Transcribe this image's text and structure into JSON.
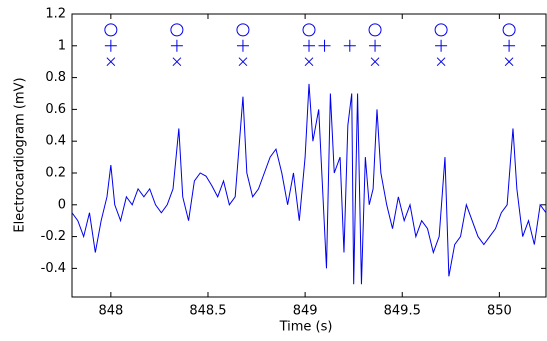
{
  "chart_data": {
    "type": "line",
    "xlabel": "Time (s)",
    "ylabel": "Electrocardiogram (mV)",
    "xlim": [
      847.8,
      850.24
    ],
    "ylim": [
      -0.58,
      1.2
    ],
    "xticks": [
      848,
      848.5,
      849,
      849.5,
      850
    ],
    "yticks": [
      -0.4,
      -0.2,
      0,
      0.2,
      0.4,
      0.6,
      0.8,
      1,
      1.2
    ],
    "series": [
      {
        "color": "#0000ee",
        "marker": "line",
        "x": [
          847.8,
          847.83,
          847.86,
          847.89,
          847.92,
          847.95,
          847.98,
          848.0,
          848.02,
          848.05,
          848.08,
          848.11,
          848.14,
          848.17,
          848.2,
          848.23,
          848.26,
          848.29,
          848.32,
          848.35,
          848.37,
          848.4,
          848.43,
          848.46,
          848.49,
          848.52,
          848.55,
          848.58,
          848.61,
          848.64,
          848.68,
          848.7,
          848.73,
          848.76,
          848.79,
          848.82,
          848.85,
          848.88,
          848.91,
          848.94,
          848.97,
          849.0,
          849.02,
          849.04,
          849.07,
          849.09,
          849.11,
          849.13,
          849.15,
          849.18,
          849.2,
          849.22,
          849.24,
          849.25,
          849.27,
          849.29,
          849.31,
          849.33,
          849.35,
          849.37,
          849.39,
          849.42,
          849.45,
          849.48,
          849.51,
          849.54,
          849.57,
          849.6,
          849.63,
          849.66,
          849.69,
          849.72,
          849.74,
          849.77,
          849.8,
          849.83,
          849.86,
          849.89,
          849.92,
          849.95,
          849.98,
          850.01,
          850.04,
          850.07,
          850.09,
          850.12,
          850.15,
          850.18,
          850.21,
          850.24
        ],
        "values": [
          -0.05,
          -0.1,
          -0.2,
          -0.05,
          -0.3,
          -0.1,
          0.05,
          0.25,
          0.0,
          -0.1,
          0.05,
          0.0,
          0.1,
          0.05,
          0.1,
          0.0,
          -0.05,
          0.0,
          0.1,
          0.48,
          0.05,
          -0.1,
          0.15,
          0.2,
          0.18,
          0.12,
          0.05,
          0.15,
          0.0,
          0.05,
          0.68,
          0.2,
          0.05,
          0.1,
          0.2,
          0.3,
          0.35,
          0.2,
          0.0,
          0.2,
          -0.1,
          0.3,
          0.76,
          0.4,
          0.6,
          0.1,
          -0.4,
          0.7,
          0.2,
          0.3,
          -0.3,
          0.5,
          0.7,
          -0.5,
          0.7,
          -0.5,
          0.3,
          0.0,
          0.1,
          0.6,
          0.2,
          0.0,
          -0.15,
          0.05,
          -0.1,
          0.0,
          -0.2,
          -0.1,
          -0.15,
          -0.3,
          -0.2,
          0.3,
          -0.45,
          -0.25,
          -0.2,
          0.0,
          -0.1,
          -0.2,
          -0.25,
          -0.2,
          -0.15,
          -0.05,
          0.0,
          0.48,
          0.1,
          -0.2,
          -0.1,
          -0.25,
          0.0,
          -0.05
        ]
      },
      {
        "color": "#0000ee",
        "marker": "o",
        "x": [
          848.0,
          848.34,
          848.68,
          849.02,
          849.36,
          849.7,
          850.05
        ],
        "values": [
          1.1,
          1.1,
          1.1,
          1.1,
          1.1,
          1.1,
          1.1
        ]
      },
      {
        "color": "#0000ee",
        "marker": "+",
        "x": [
          848.0,
          848.34,
          848.68,
          849.02,
          849.1,
          849.23,
          849.36,
          849.7,
          850.05
        ],
        "values": [
          1,
          1,
          1,
          1,
          1,
          1,
          1,
          1,
          1
        ]
      },
      {
        "color": "#0000ee",
        "marker": "x",
        "x": [
          848.0,
          848.34,
          848.68,
          849.02,
          849.36,
          849.7,
          850.05
        ],
        "values": [
          0.9,
          0.9,
          0.9,
          0.9,
          0.9,
          0.9,
          0.9
        ]
      }
    ]
  }
}
